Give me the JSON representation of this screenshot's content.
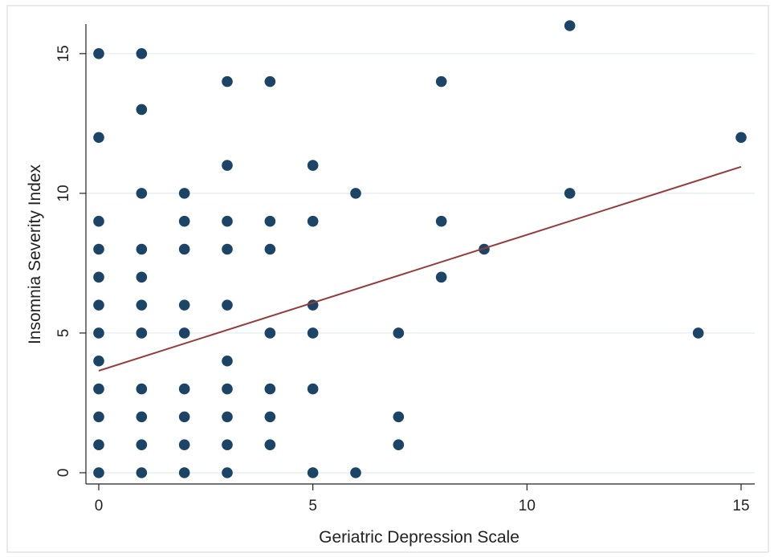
{
  "chart_data": {
    "type": "scatter",
    "title": "",
    "xlabel": "Geriatric Depression Scale",
    "ylabel": "Insomnia Severity Index",
    "xlim": [
      0,
      15
    ],
    "ylim": [
      0,
      16
    ],
    "x_ticks": [
      0,
      5,
      10,
      15
    ],
    "y_ticks": [
      0,
      5,
      10,
      15
    ],
    "grid": "horizontal",
    "legend": "none",
    "colors": {
      "point": "#1c4466",
      "fit_line": "#963a3a",
      "grid": "#e3ebee",
      "frame": "#d6d6d6"
    },
    "points": [
      [
        0,
        0
      ],
      [
        0,
        1
      ],
      [
        0,
        2
      ],
      [
        0,
        3
      ],
      [
        0,
        4
      ],
      [
        0,
        5
      ],
      [
        0,
        6
      ],
      [
        0,
        7
      ],
      [
        0,
        8
      ],
      [
        0,
        9
      ],
      [
        0,
        12
      ],
      [
        0,
        15
      ],
      [
        1,
        0
      ],
      [
        1,
        1
      ],
      [
        1,
        2
      ],
      [
        1,
        3
      ],
      [
        1,
        5
      ],
      [
        1,
        6
      ],
      [
        1,
        7
      ],
      [
        1,
        8
      ],
      [
        1,
        10
      ],
      [
        1,
        13
      ],
      [
        1,
        15
      ],
      [
        2,
        0
      ],
      [
        2,
        1
      ],
      [
        2,
        2
      ],
      [
        2,
        3
      ],
      [
        2,
        5
      ],
      [
        2,
        6
      ],
      [
        2,
        8
      ],
      [
        2,
        9
      ],
      [
        2,
        10
      ],
      [
        3,
        0
      ],
      [
        3,
        1
      ],
      [
        3,
        2
      ],
      [
        3,
        3
      ],
      [
        3,
        4
      ],
      [
        3,
        6
      ],
      [
        3,
        8
      ],
      [
        3,
        9
      ],
      [
        3,
        11
      ],
      [
        3,
        14
      ],
      [
        4,
        1
      ],
      [
        4,
        2
      ],
      [
        4,
        3
      ],
      [
        4,
        5
      ],
      [
        4,
        8
      ],
      [
        4,
        9
      ],
      [
        4,
        14
      ],
      [
        5,
        0
      ],
      [
        5,
        3
      ],
      [
        5,
        5
      ],
      [
        5,
        6
      ],
      [
        5,
        9
      ],
      [
        5,
        11
      ],
      [
        6,
        0
      ],
      [
        6,
        10
      ],
      [
        7,
        1
      ],
      [
        7,
        2
      ],
      [
        7,
        5
      ],
      [
        8,
        7
      ],
      [
        8,
        9
      ],
      [
        8,
        14
      ],
      [
        9,
        8
      ],
      [
        11,
        10
      ],
      [
        11,
        16
      ],
      [
        14,
        5
      ],
      [
        15,
        12
      ]
    ],
    "fit_line": {
      "x": [
        0,
        15
      ],
      "y": [
        3.65,
        10.95
      ]
    }
  }
}
